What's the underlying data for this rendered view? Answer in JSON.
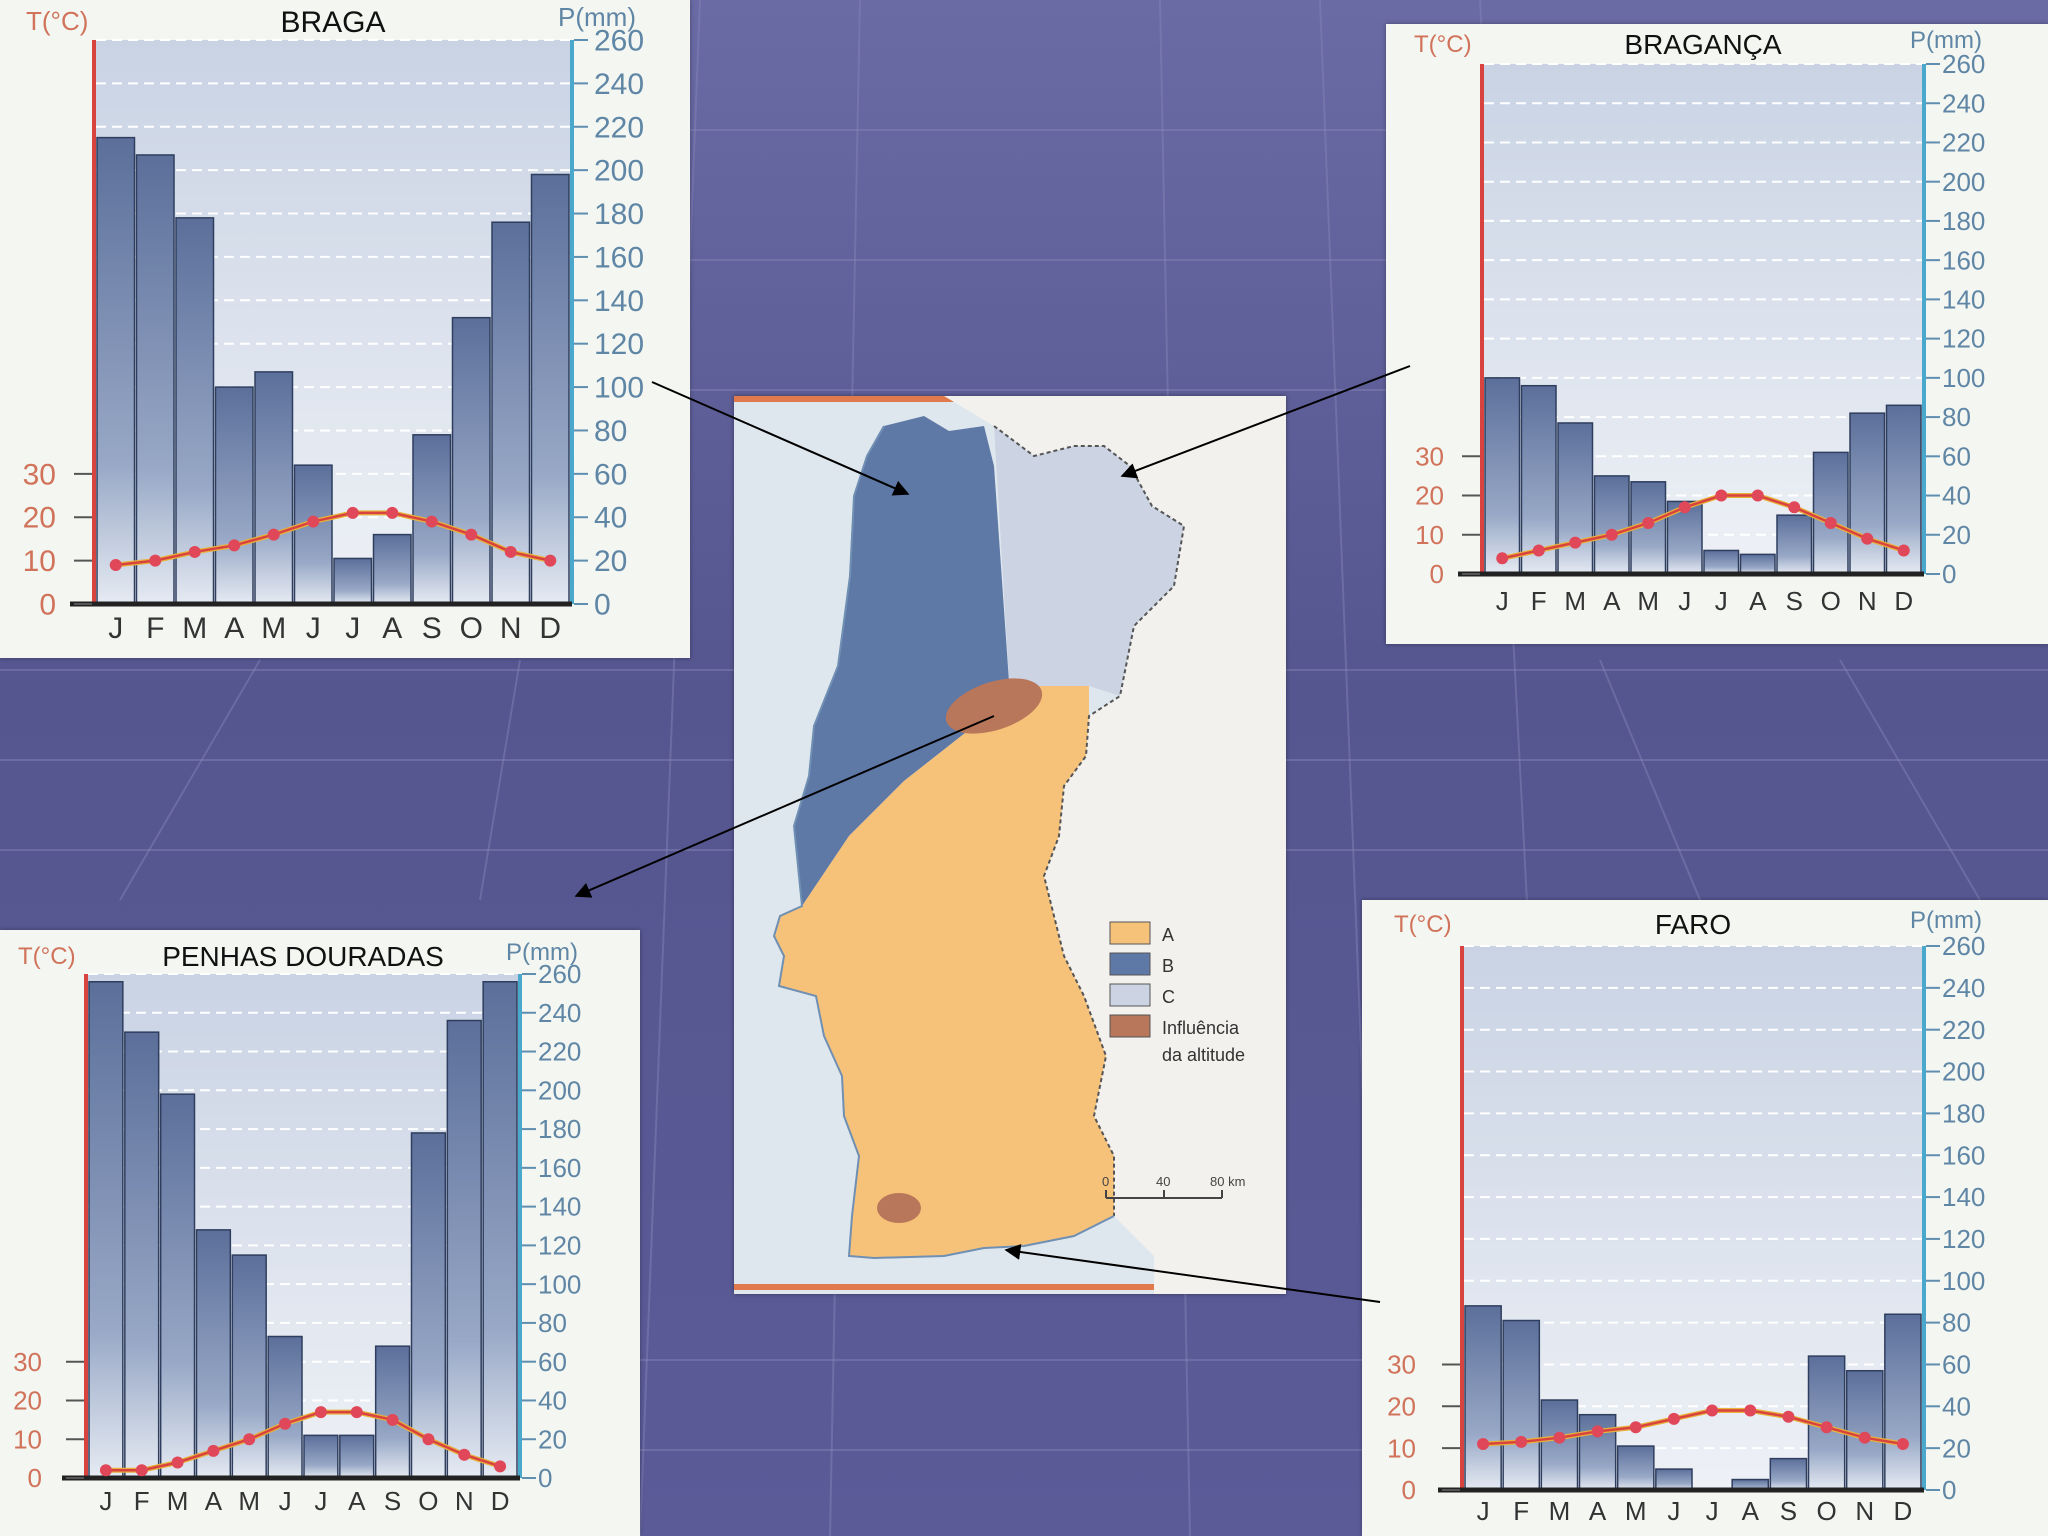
{
  "map": {
    "legend": [
      {
        "key": "A",
        "label": "A",
        "color": "#f6c27a"
      },
      {
        "key": "B",
        "label": "B",
        "color": "#5f79a6"
      },
      {
        "key": "C",
        "label": "C",
        "color": "#ccd3e2"
      },
      {
        "key": "alt",
        "label": "Influência",
        "label2": "da altitude",
        "color": "#b8765b"
      }
    ],
    "scale": {
      "labels": [
        "0",
        "40",
        "80 km"
      ]
    }
  },
  "chart_data": [
    {
      "type": "bar+line",
      "title": "BRAGA",
      "ylabel_left": "T(°C)",
      "ylabel_right": "P(mm)",
      "categories": [
        "J",
        "F",
        "M",
        "A",
        "M",
        "J",
        "J",
        "A",
        "S",
        "O",
        "N",
        "D"
      ],
      "temp_ticks": [
        "0",
        "10",
        "20",
        "30"
      ],
      "precip_ticks": [
        "0",
        "20",
        "40",
        "60",
        "80",
        "100",
        "120",
        "140",
        "160",
        "180",
        "200",
        "220",
        "240",
        "260"
      ],
      "temp_range": [
        0,
        130
      ],
      "precip_range": [
        0,
        260
      ],
      "series": [
        {
          "name": "Precipitação",
          "unit": "mm",
          "values": [
            215,
            207,
            178,
            100,
            107,
            64,
            21,
            32,
            78,
            132,
            176,
            198
          ]
        },
        {
          "name": "Temperatura",
          "unit": "°C",
          "values": [
            9,
            10,
            12,
            13.5,
            16,
            19,
            21,
            21,
            19,
            16,
            12,
            10
          ]
        }
      ]
    },
    {
      "type": "bar+line",
      "title": "BRAGANÇA",
      "ylabel_left": "T(°C)",
      "ylabel_right": "P(mm)",
      "categories": [
        "J",
        "F",
        "M",
        "A",
        "M",
        "J",
        "J",
        "A",
        "S",
        "O",
        "N",
        "D"
      ],
      "temp_ticks": [
        "0",
        "10",
        "20",
        "30"
      ],
      "precip_ticks": [
        "0",
        "20",
        "40",
        "60",
        "80",
        "100",
        "120",
        "140",
        "160",
        "180",
        "200",
        "220",
        "240",
        "260"
      ],
      "temp_range": [
        0,
        130
      ],
      "precip_range": [
        0,
        260
      ],
      "series": [
        {
          "name": "Precipitação",
          "unit": "mm",
          "values": [
            100,
            96,
            77,
            50,
            47,
            37,
            12,
            10,
            30,
            62,
            82,
            86
          ]
        },
        {
          "name": "Temperatura",
          "unit": "°C",
          "values": [
            4,
            6,
            8,
            10,
            13,
            17,
            20,
            20,
            17,
            13,
            9,
            6
          ]
        }
      ]
    },
    {
      "type": "bar+line",
      "title": "PENHAS DOURADAS",
      "ylabel_left": "T(°C)",
      "ylabel_right": "P(mm)",
      "categories": [
        "J",
        "F",
        "M",
        "A",
        "M",
        "J",
        "J",
        "A",
        "S",
        "O",
        "N",
        "D"
      ],
      "temp_ticks": [
        "0",
        "10",
        "20",
        "30"
      ],
      "precip_ticks": [
        "0",
        "20",
        "40",
        "60",
        "80",
        "100",
        "120",
        "140",
        "160",
        "180",
        "200",
        "220",
        "240",
        "260"
      ],
      "temp_range": [
        0,
        130
      ],
      "precip_range": [
        0,
        260
      ],
      "series": [
        {
          "name": "Precipitação",
          "unit": "mm",
          "values": [
            256,
            230,
            198,
            128,
            115,
            73,
            22,
            22,
            68,
            178,
            236,
            256
          ]
        },
        {
          "name": "Temperatura",
          "unit": "°C",
          "values": [
            2,
            2,
            4,
            7,
            10,
            14,
            17,
            17,
            15,
            10,
            6,
            3
          ]
        }
      ]
    },
    {
      "type": "bar+line",
      "title": "FARO",
      "ylabel_left": "T(°C)",
      "ylabel_right": "P(mm)",
      "categories": [
        "J",
        "F",
        "M",
        "A",
        "M",
        "J",
        "J",
        "A",
        "S",
        "O",
        "N",
        "D"
      ],
      "temp_ticks": [
        "0",
        "10",
        "20",
        "30"
      ],
      "precip_ticks": [
        "0",
        "20",
        "40",
        "60",
        "80",
        "100",
        "120",
        "140",
        "160",
        "180",
        "200",
        "220",
        "240",
        "260"
      ],
      "temp_range": [
        0,
        130
      ],
      "precip_range": [
        0,
        260
      ],
      "series": [
        {
          "name": "Precipitação",
          "unit": "mm",
          "values": [
            88,
            81,
            43,
            36,
            21,
            10,
            0,
            5,
            15,
            64,
            57,
            84
          ]
        },
        {
          "name": "Temperatura",
          "unit": "°C",
          "values": [
            11,
            11.5,
            12.5,
            14,
            15,
            17,
            19,
            19,
            17.5,
            15,
            12.5,
            11
          ]
        }
      ]
    }
  ]
}
